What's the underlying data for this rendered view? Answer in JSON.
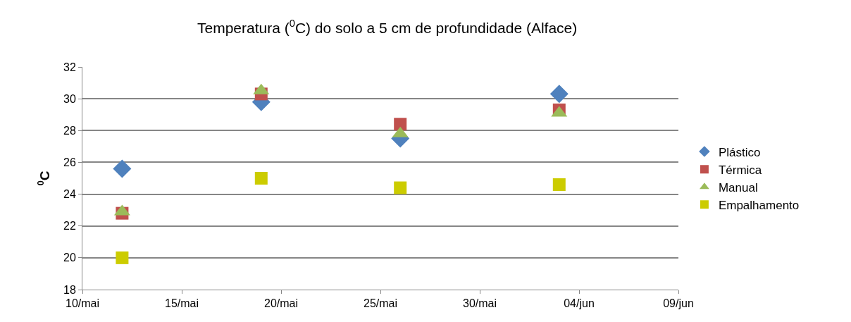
{
  "chart_data": {
    "type": "scatter",
    "title": "Temperatura ($^{0}$C) do solo a 5 cm de profundidade (Alface)",
    "ylabel": "$^{0}$C",
    "x": [
      "--05-12",
      "--05-19",
      "--05-26",
      "--06-03"
    ],
    "series": [
      {
        "name": "Plástico",
        "color": "#4f81bd",
        "marker": "diamond",
        "values": [
          25.6,
          29.8,
          27.5,
          30.3
        ]
      },
      {
        "name": "Térmica",
        "color": "#c0504d",
        "marker": "square",
        "values": [
          22.8,
          30.3,
          28.4,
          29.3
        ]
      },
      {
        "name": "Manual",
        "color": "#9bbb59",
        "marker": "triangle",
        "values": [
          22.9,
          30.5,
          27.8,
          29.1
        ]
      },
      {
        "name": "Empalhamento",
        "color": "#cccc00",
        "marker": "square",
        "values": [
          20.0,
          25.0,
          24.4,
          24.6
        ]
      }
    ],
    "xlim": [
      "--05-10",
      "--06-09"
    ],
    "xticks": [
      {
        "value": "--05-10",
        "label": "10/mai"
      },
      {
        "value": "--05-15",
        "label": "15/mai"
      },
      {
        "value": "--05-20",
        "label": "20/mai"
      },
      {
        "value": "--05-25",
        "label": "25/mai"
      },
      {
        "value": "--05-30",
        "label": "30/mai"
      },
      {
        "value": "--06-04",
        "label": "04/jun"
      },
      {
        "value": "--06-09",
        "label": "09/jun"
      }
    ],
    "ylim": [
      18,
      32
    ],
    "yticks": [
      18,
      20,
      22,
      24,
      26,
      28,
      30,
      32
    ],
    "grid": "y",
    "legend": "right"
  }
}
